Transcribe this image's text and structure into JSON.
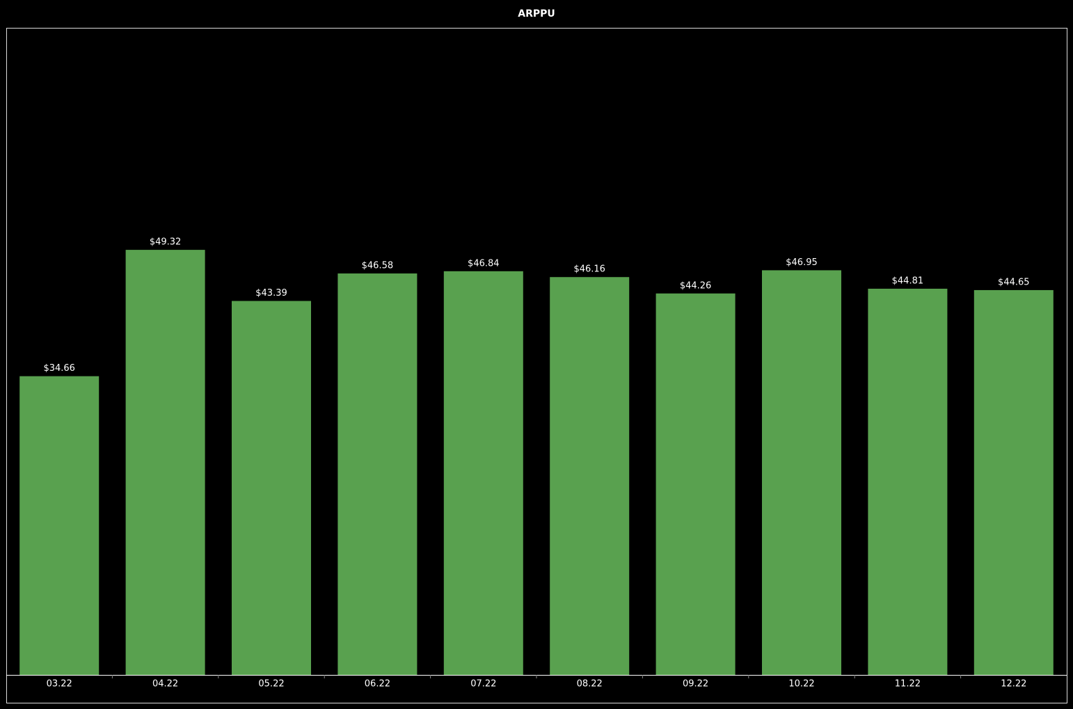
{
  "chart_data": {
    "type": "bar",
    "title": "ARPPU",
    "categories": [
      "03.22",
      "04.22",
      "05.22",
      "06.22",
      "07.22",
      "08.22",
      "09.22",
      "10.22",
      "11.22",
      "12.22"
    ],
    "values": [
      34.66,
      49.32,
      43.39,
      46.58,
      46.84,
      46.16,
      44.26,
      46.95,
      44.81,
      44.65
    ],
    "value_labels": [
      "$34.66",
      "$49.32",
      "$43.39",
      "$46.58",
      "$46.84",
      "$46.16",
      "$44.26",
      "$46.95",
      "$44.81",
      "$44.65"
    ],
    "color": "#59a14f",
    "ylim": [
      0,
      75
    ]
  }
}
